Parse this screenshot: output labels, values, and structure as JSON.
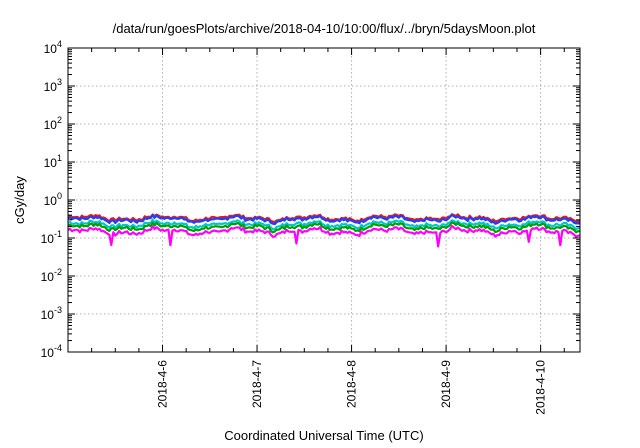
{
  "chart_data": {
    "type": "line",
    "title": "/data/run/goesPlots/archive/2018-04-10/10:00/flux/../bryn/5daysMoon.plot",
    "xlabel": "Coordinated Universal Time (UTC)",
    "ylabel": "cGy/day",
    "yscale": "log",
    "ylim": [
      0.0001,
      10000
    ],
    "xlim": [
      "2018-04-05 00:00",
      "2018-04-10 10:00"
    ],
    "grid": true,
    "y_ticks": [
      {
        "base": "10",
        "exp": "-4"
      },
      {
        "base": "10",
        "exp": "-3"
      },
      {
        "base": "10",
        "exp": "-2"
      },
      {
        "base": "10",
        "exp": "-1"
      },
      {
        "base": "10",
        "exp": "0"
      },
      {
        "base": "10",
        "exp": "1"
      },
      {
        "base": "10",
        "exp": "2"
      },
      {
        "base": "10",
        "exp": "3"
      },
      {
        "base": "10",
        "exp": "4"
      }
    ],
    "x_ticks": [
      "2018-4-6",
      "2018-4-7",
      "2018-4-8",
      "2018-4-9",
      "2018-4-10"
    ],
    "series": [
      {
        "color": "#e41a1c",
        "level": 0.34
      },
      {
        "color": "#1f3fff",
        "level": 0.31
      },
      {
        "color": "#00c8c8",
        "level": 0.23
      },
      {
        "color": "#00a000",
        "level": 0.195
      },
      {
        "color": "#ff00ff",
        "level": 0.15,
        "dips": [
          "2018-04-05 11:00",
          "2018-04-06 02:00",
          "2018-04-07 10:00",
          "2018-04-08 22:00",
          "2018-04-09 21:00",
          "2018-04-10 05:00"
        ]
      }
    ]
  }
}
